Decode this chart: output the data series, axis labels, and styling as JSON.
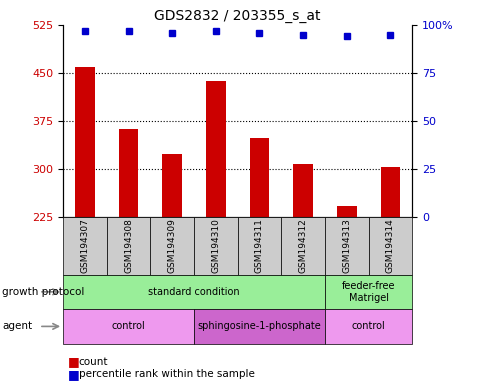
{
  "title": "GDS2832 / 203355_s_at",
  "samples": [
    "GSM194307",
    "GSM194308",
    "GSM194309",
    "GSM194310",
    "GSM194311",
    "GSM194312",
    "GSM194313",
    "GSM194314"
  ],
  "counts": [
    460,
    362,
    323,
    437,
    348,
    308,
    242,
    303
  ],
  "percentile_ranks": [
    97,
    97,
    96,
    97,
    96,
    95,
    94,
    95
  ],
  "ylim_left": [
    225,
    525
  ],
  "ylim_right": [
    0,
    100
  ],
  "yticks_left": [
    225,
    300,
    375,
    450,
    525
  ],
  "yticks_right": [
    0,
    25,
    50,
    75,
    100
  ],
  "bar_color": "#cc0000",
  "dot_color": "#0000cc",
  "growth_protocol_color": "#99ee99",
  "growth_protocol_groups": [
    {
      "label": "standard condition",
      "start": 0,
      "end": 6
    },
    {
      "label": "feeder-free\nMatrigel",
      "start": 6,
      "end": 8
    }
  ],
  "agent_groups": [
    {
      "label": "control",
      "start": 0,
      "end": 3,
      "color": "#ee99ee"
    },
    {
      "label": "sphingosine-1-phosphate",
      "start": 3,
      "end": 6,
      "color": "#cc66cc"
    },
    {
      "label": "control",
      "start": 6,
      "end": 8,
      "color": "#ee99ee"
    }
  ],
  "grid_lines": [
    300,
    375,
    450
  ],
  "baseline": 225
}
